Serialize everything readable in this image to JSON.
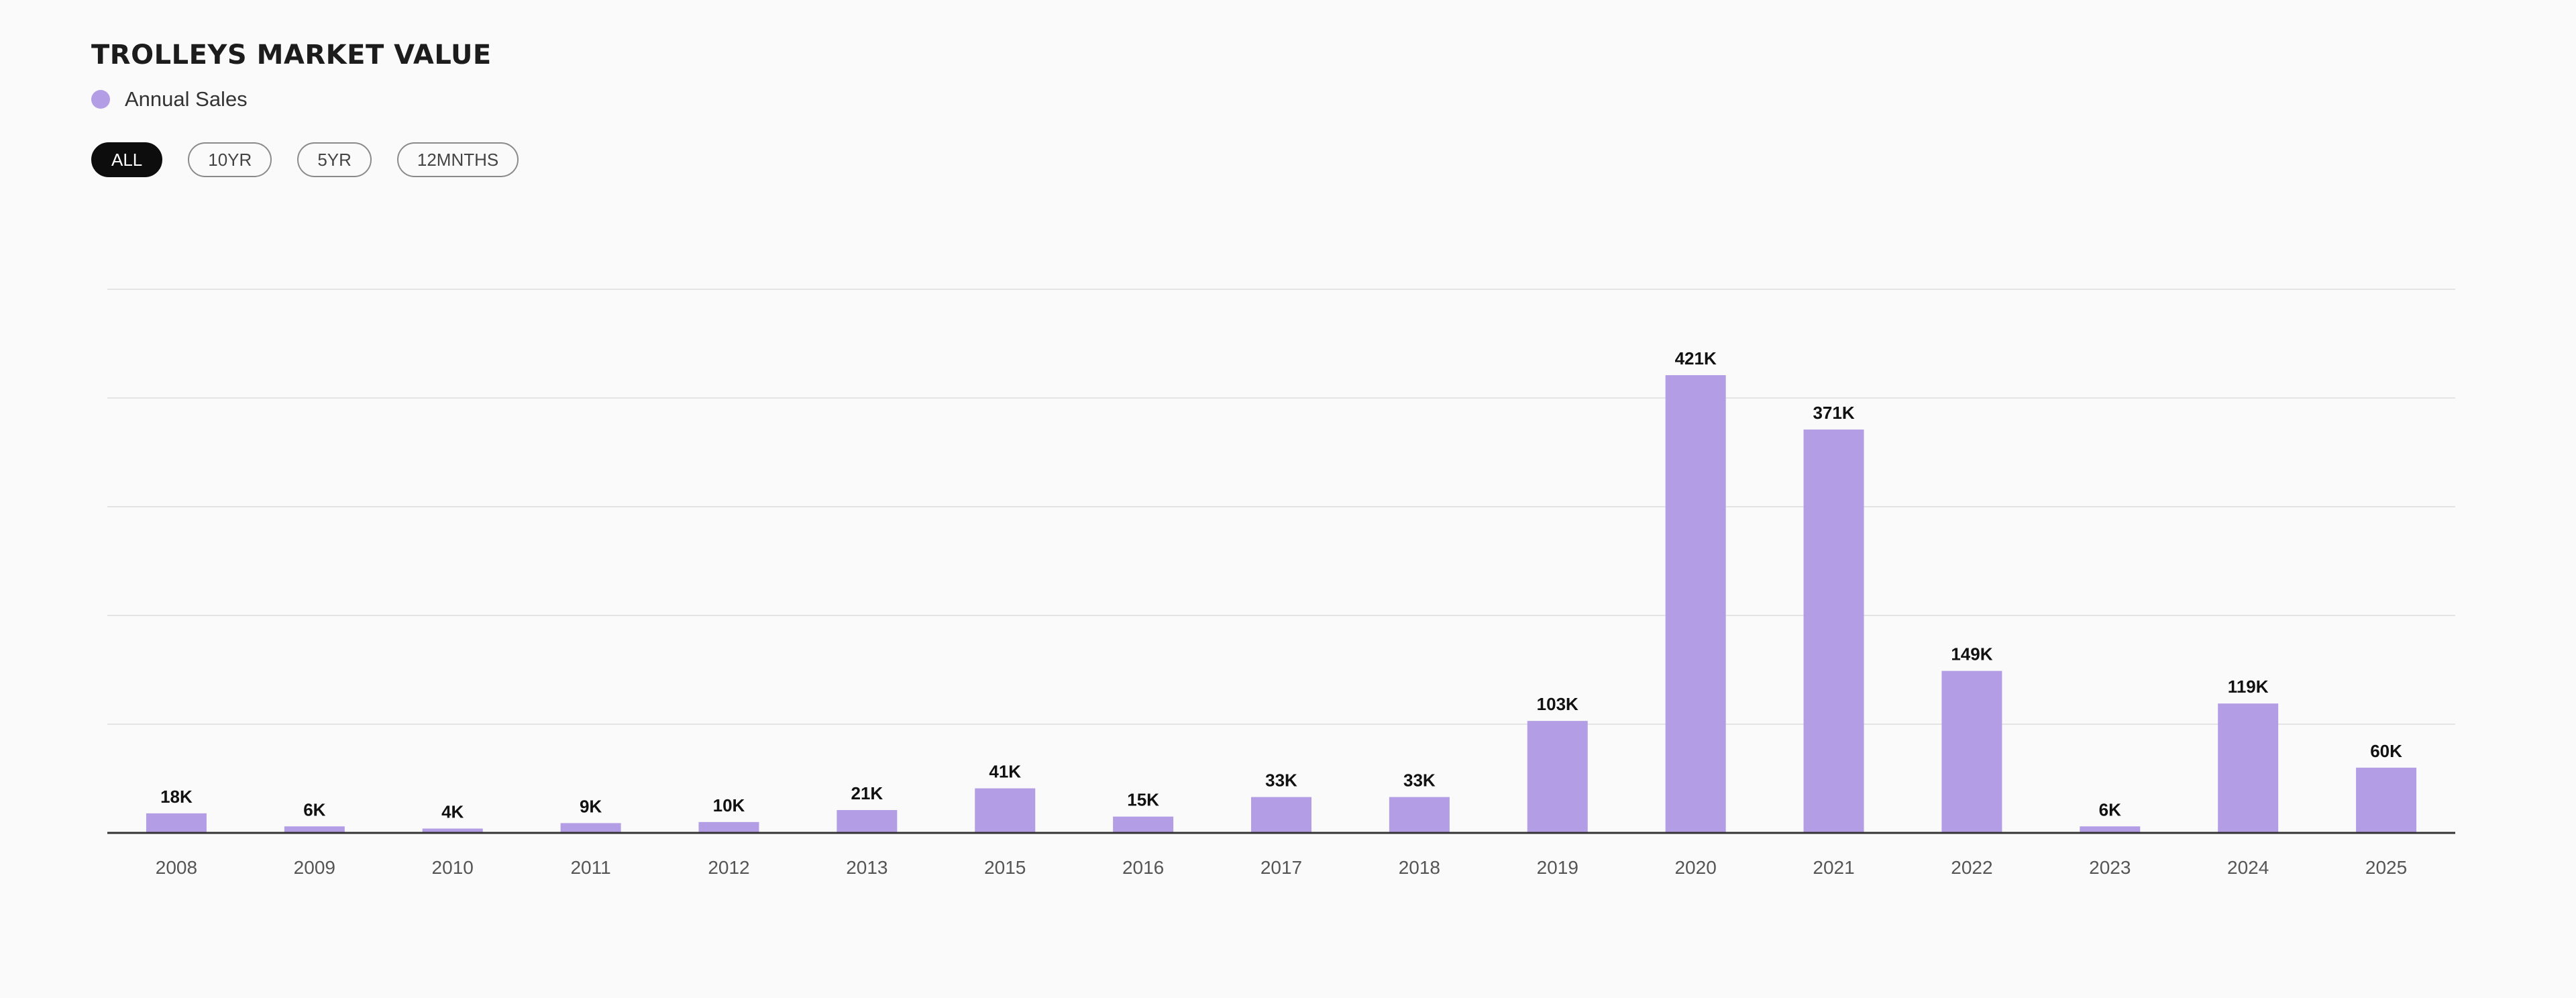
{
  "title": "TROLLEYS MARKET VALUE",
  "legend": {
    "label": "Annual Sales",
    "color": "#b39ee6"
  },
  "filters": [
    {
      "label": "ALL",
      "active": true
    },
    {
      "label": "10YR",
      "active": false
    },
    {
      "label": "5YR",
      "active": false
    },
    {
      "label": "12MNTHS",
      "active": false
    }
  ],
  "chart_data": {
    "type": "bar",
    "categories": [
      "2008",
      "2009",
      "2010",
      "2011",
      "2012",
      "2013",
      "2015",
      "2016",
      "2017",
      "2018",
      "2019",
      "2020",
      "2021",
      "2022",
      "2023",
      "2024",
      "2025"
    ],
    "series": [
      {
        "name": "Annual Sales",
        "values": [
          18000,
          6000,
          4000,
          9000,
          10000,
          21000,
          41000,
          15000,
          33000,
          33000,
          103000,
          421000,
          371000,
          149000,
          6000,
          119000,
          60000
        ],
        "labels": [
          "18K",
          "6K",
          "4K",
          "9K",
          "10K",
          "21K",
          "41K",
          "15K",
          "33K",
          "33K",
          "103K",
          "421K",
          "371K",
          "149K",
          "6K",
          "119K",
          "60K"
        ]
      }
    ],
    "ylim": [
      0,
      500000
    ],
    "gridlines": [
      100000,
      200000,
      300000,
      400000,
      500000
    ],
    "grid": true,
    "bar_color": "#b39ee6",
    "grid_color": "#e4e4e4",
    "axis_color": "#333333"
  }
}
